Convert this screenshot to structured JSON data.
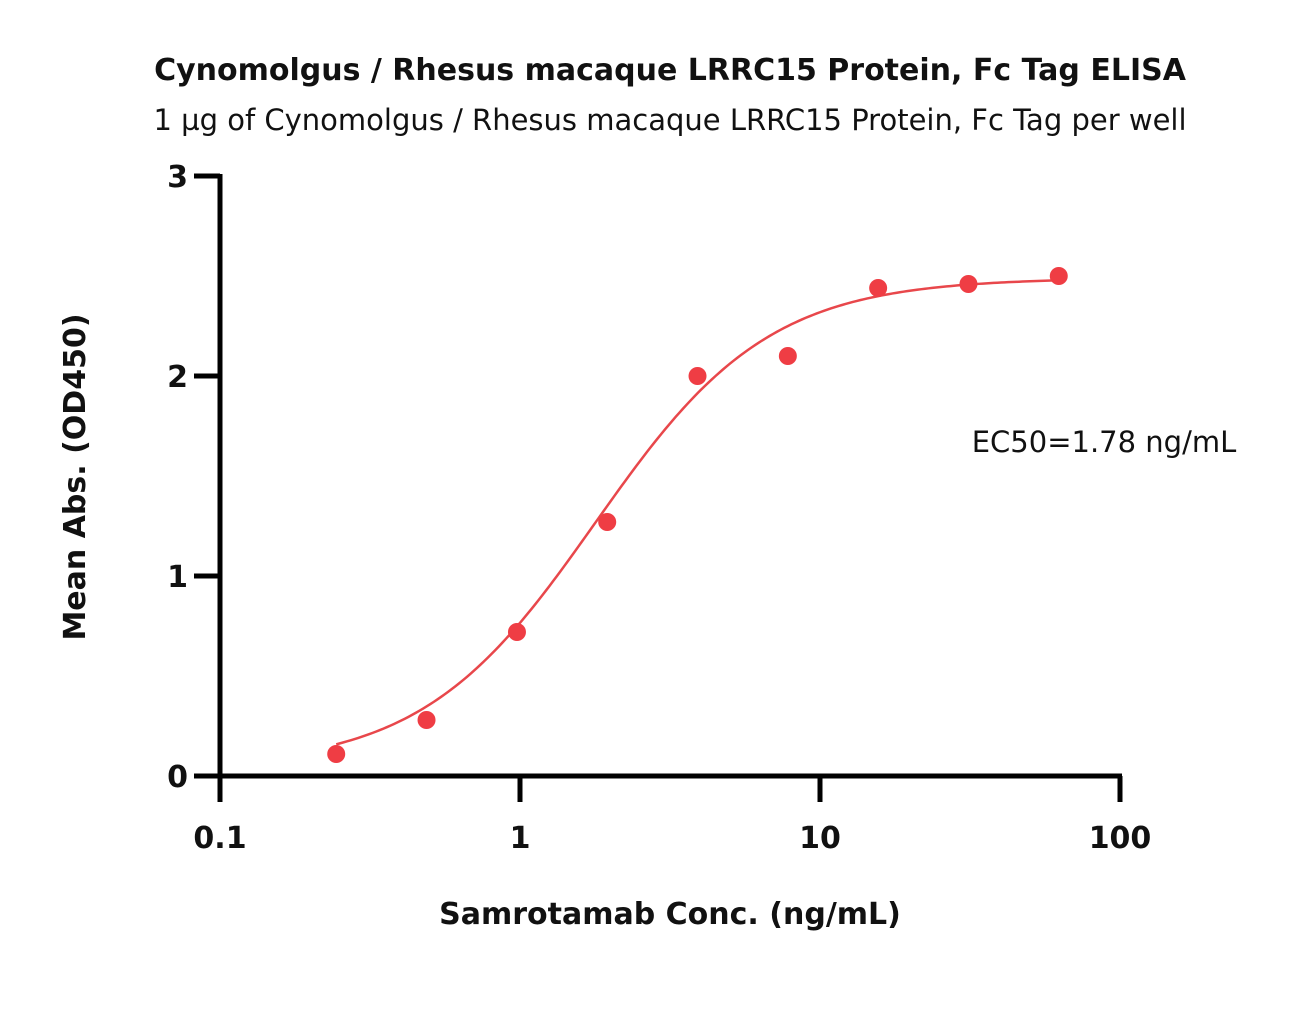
{
  "chart_data": {
    "type": "scatter",
    "title": "Cynomolgus / Rhesus macaque LRRC15 Protein, Fc Tag ELISA",
    "subtitle": "1 µg of Cynomolgus / Rhesus macaque LRRC15 Protein, Fc Tag per well",
    "xlabel": "Samrotamab Conc. (ng/mL)",
    "ylabel": "Mean Abs. (OD450)",
    "x_scale": "log",
    "xlim": [
      0.1,
      100
    ],
    "ylim": [
      0,
      3
    ],
    "x_ticks": [
      "0.1",
      "1",
      "10",
      "100"
    ],
    "y_ticks": [
      "0",
      "1",
      "2",
      "3"
    ],
    "grid": false,
    "annotation": "EC50=1.78 ng/mL",
    "series": [
      {
        "x": [
          0.244,
          0.488,
          0.977,
          1.953,
          3.906,
          7.813,
          15.625,
          31.25,
          62.5
        ],
        "y": [
          0.11,
          0.28,
          0.72,
          1.27,
          2.0,
          2.1,
          2.44,
          2.46,
          2.5
        ],
        "color": "#ef3d44"
      }
    ],
    "fit": {
      "bottom": 0.04,
      "top": 2.49,
      "ec50": 1.78,
      "hill": 1.5,
      "x_range": [
        0.244,
        62.5
      ],
      "color": "#e8474b"
    }
  }
}
